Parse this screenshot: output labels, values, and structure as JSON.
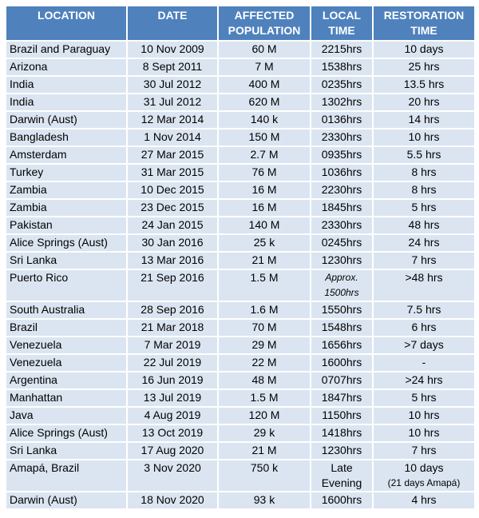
{
  "table": {
    "header": [
      "LOCATION",
      "DATE",
      "AFFECTED POPULATION",
      "LOCAL TIME",
      "RESTORATION TIME"
    ],
    "rows": [
      [
        "Brazil and Paraguay",
        "10 Nov 2009",
        "60 M",
        "2215hrs",
        "10 days"
      ],
      [
        "Arizona",
        "8 Sept 2011",
        "7 M",
        "1538hrs",
        "25 hrs"
      ],
      [
        "India",
        "30 Jul 2012",
        "400 M",
        "0235hrs",
        "13.5 hrs"
      ],
      [
        "India",
        "31 Jul 2012",
        "620 M",
        "1302hrs",
        "20 hrs"
      ],
      [
        "Darwin (Aust)",
        "12 Mar 2014",
        "140 k",
        "0136hrs",
        "14 hrs"
      ],
      [
        "Bangladesh",
        "1 Nov 2014",
        "150 M",
        "2330hrs",
        "10 hrs"
      ],
      [
        "Amsterdam",
        "27 Mar 2015",
        "2.7 M",
        "0935hrs",
        "5.5 hrs"
      ],
      [
        "Turkey",
        "31 Mar 2015",
        "76 M",
        "1036hrs",
        "8 hrs"
      ],
      [
        "Zambia",
        "10 Dec 2015",
        "16 M",
        "2230hrs",
        "8 hrs"
      ],
      [
        "Zambia",
        "23 Dec 2015",
        "16 M",
        "1845hrs",
        "5 hrs"
      ],
      [
        "Pakistan",
        "24 Jan 2015",
        "140 M",
        "2330hrs",
        "48 hrs"
      ],
      [
        "Alice Springs (Aust)",
        "30 Jan 2016",
        "25 k",
        "0245hrs",
        "24 hrs"
      ],
      [
        "Sri Lanka",
        "13 Mar 2016",
        "21 M",
        "1230hrs",
        "7 hrs"
      ],
      [
        "Puerto Rico",
        "21 Sep 2016",
        "1.5 M",
        [
          "Approx.",
          "1500hrs"
        ],
        ">48 hrs"
      ],
      [
        "South Australia",
        "28 Sep 2016",
        "1.6 M",
        "1550hrs",
        "7.5 hrs"
      ],
      [
        "Brazil",
        "21 Mar 2018",
        "70 M",
        "1548hrs",
        "6 hrs"
      ],
      [
        "Venezuela",
        "7 Mar 2019",
        "29 M",
        "1656hrs",
        ">7 days"
      ],
      [
        "Venezuela",
        "22 Jul 2019",
        "22 M",
        "1600hrs",
        "-"
      ],
      [
        "Argentina",
        "16 Jun 2019",
        "48 M",
        "0707hrs",
        ">24 hrs"
      ],
      [
        "Manhattan",
        "13 Jul 2019",
        "1.5 M",
        "1847hrs",
        "5 hrs"
      ],
      [
        "Java",
        "4 Aug 2019",
        "120 M",
        "1150hrs",
        "10 hrs"
      ],
      [
        "Alice Springs (Aust)",
        "13 Oct 2019",
        "29 k",
        "1418hrs",
        "10 hrs"
      ],
      [
        "Sri Lanka",
        "17 Aug 2020",
        "21 M",
        "1230hrs",
        "7 hrs"
      ],
      [
        "Amapá, Brazil",
        "3 Nov 2020",
        "750 k",
        [
          "Late",
          "Evening"
        ],
        [
          "10 days",
          "(21 days Amapá)"
        ]
      ],
      [
        "Darwin (Aust)",
        "18 Nov 2020",
        "93 k",
        "1600hrs",
        "4 hrs"
      ]
    ]
  }
}
